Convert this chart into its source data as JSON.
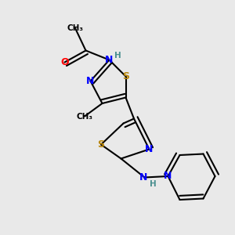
{
  "bg_color": "#e9e9e9",
  "atom_colors": {
    "C": "#000000",
    "N": "#0000ff",
    "S": "#b8860b",
    "O": "#ff0000",
    "H": "#4a8f8f"
  },
  "bond_color": "#000000",
  "bond_width": 1.5,
  "font_size_atom": 9,
  "font_size_small": 7.5
}
